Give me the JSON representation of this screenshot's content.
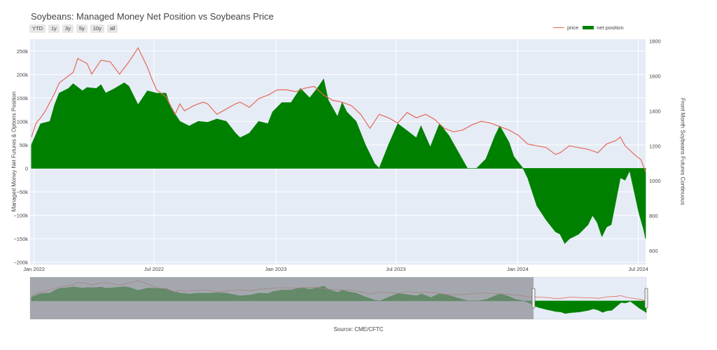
{
  "title": "Soybeans: Managed Money Net Position vs Soybeans Price",
  "range_buttons": [
    "YTD",
    "1y",
    "3y",
    "5y",
    "10y",
    "all"
  ],
  "legend": {
    "price": "price",
    "net": "net position"
  },
  "colors": {
    "price": "#e8685a",
    "net": "#008000",
    "plot_bg": "#e5ecf6",
    "mask": "#8a8d91"
  },
  "source": "Source: CME/CFTC",
  "chart_data": {
    "type": "area",
    "title": "Soybeans: Managed Money Net Position vs Soybeans Price",
    "xlabel": "",
    "x_ticks": [
      "Jan 2022",
      "Jul 2022",
      "Jan 2023",
      "Jul 2023",
      "Jan 2024",
      "Jul 2024"
    ],
    "x_range": [
      "2021-12-26",
      "2024-07-12"
    ],
    "y_left": {
      "label": "Managed Money Net Futures & Options Position",
      "range": [
        -205000,
        275000
      ],
      "ticks": [
        250000,
        200000,
        150000,
        100000,
        50000,
        0,
        -50000,
        -100000,
        -150000,
        -200000
      ],
      "tick_labels": [
        "250k",
        "200k",
        "150k",
        "100k",
        "50k",
        "0",
        "−50k",
        "−100k",
        "−150k",
        "−200k"
      ]
    },
    "y_right": {
      "label": "Front Month Soybeans Futures Continuous",
      "range": [
        520,
        1810
      ],
      "ticks": [
        1800,
        1600,
        1400,
        1200,
        1000,
        800,
        600
      ],
      "tick_labels": [
        "1800",
        "1600",
        "1400",
        "1200",
        "1000",
        "800",
        "600"
      ]
    },
    "grid": true,
    "legend_position": "top-right",
    "series": [
      {
        "name": "net position",
        "axis": "left",
        "style": "filled-area",
        "points": [
          [
            "2021-12-28",
            50000
          ],
          [
            "2022-01-11",
            95000
          ],
          [
            "2022-01-25",
            100000
          ],
          [
            "2022-02-01",
            135000
          ],
          [
            "2022-02-08",
            160000
          ],
          [
            "2022-02-22",
            170000
          ],
          [
            "2022-03-01",
            180000
          ],
          [
            "2022-03-15",
            165000
          ],
          [
            "2022-03-22",
            172000
          ],
          [
            "2022-04-05",
            170000
          ],
          [
            "2022-04-12",
            178000
          ],
          [
            "2022-04-19",
            160000
          ],
          [
            "2022-05-03",
            170000
          ],
          [
            "2022-05-17",
            182000
          ],
          [
            "2022-05-24",
            175000
          ],
          [
            "2022-06-07",
            135000
          ],
          [
            "2022-06-21",
            165000
          ],
          [
            "2022-07-05",
            160000
          ],
          [
            "2022-07-19",
            160000
          ],
          [
            "2022-07-26",
            130000
          ],
          [
            "2022-08-09",
            100000
          ],
          [
            "2022-08-23",
            90000
          ],
          [
            "2022-09-06",
            100000
          ],
          [
            "2022-09-20",
            98000
          ],
          [
            "2022-10-04",
            105000
          ],
          [
            "2022-10-18",
            100000
          ],
          [
            "2022-11-01",
            75000
          ],
          [
            "2022-11-08",
            65000
          ],
          [
            "2022-11-22",
            75000
          ],
          [
            "2022-12-06",
            100000
          ],
          [
            "2022-12-20",
            95000
          ],
          [
            "2022-12-27",
            120000
          ],
          [
            "2023-01-10",
            140000
          ],
          [
            "2023-01-24",
            140000
          ],
          [
            "2023-02-07",
            170000
          ],
          [
            "2023-02-21",
            150000
          ],
          [
            "2023-03-07",
            175000
          ],
          [
            "2023-03-14",
            190000
          ],
          [
            "2023-03-21",
            145000
          ],
          [
            "2023-04-04",
            110000
          ],
          [
            "2023-04-11",
            140000
          ],
          [
            "2023-04-18",
            120000
          ],
          [
            "2023-05-02",
            100000
          ],
          [
            "2023-05-16",
            50000
          ],
          [
            "2023-05-30",
            10000
          ],
          [
            "2023-06-06",
            0
          ],
          [
            "2023-06-20",
            50000
          ],
          [
            "2023-07-04",
            95000
          ],
          [
            "2023-07-18",
            80000
          ],
          [
            "2023-08-01",
            65000
          ],
          [
            "2023-08-08",
            90000
          ],
          [
            "2023-08-22",
            45000
          ],
          [
            "2023-09-05",
            95000
          ],
          [
            "2023-09-19",
            70000
          ],
          [
            "2023-10-03",
            35000
          ],
          [
            "2023-10-17",
            0
          ],
          [
            "2023-10-31",
            0
          ],
          [
            "2023-11-14",
            20000
          ],
          [
            "2023-11-28",
            70000
          ],
          [
            "2023-12-05",
            90000
          ],
          [
            "2023-12-19",
            55000
          ],
          [
            "2023-12-26",
            25000
          ],
          [
            "2024-01-09",
            0
          ],
          [
            "2024-01-16",
            -20000
          ],
          [
            "2024-01-30",
            -80000
          ],
          [
            "2024-02-13",
            -110000
          ],
          [
            "2024-02-27",
            -135000
          ],
          [
            "2024-03-05",
            -140000
          ],
          [
            "2024-03-12",
            -160000
          ],
          [
            "2024-03-19",
            -150000
          ],
          [
            "2024-04-02",
            -140000
          ],
          [
            "2024-04-16",
            -120000
          ],
          [
            "2024-04-23",
            -100000
          ],
          [
            "2024-04-30",
            -115000
          ],
          [
            "2024-05-07",
            -145000
          ],
          [
            "2024-05-14",
            -125000
          ],
          [
            "2024-05-21",
            -120000
          ],
          [
            "2024-06-04",
            -20000
          ],
          [
            "2024-06-11",
            -25000
          ],
          [
            "2024-06-18",
            -5000
          ],
          [
            "2024-06-25",
            -50000
          ],
          [
            "2024-07-02",
            -95000
          ],
          [
            "2024-07-09",
            -130000
          ],
          [
            "2024-07-12",
            -150000
          ]
        ]
      },
      {
        "name": "price",
        "axis": "right",
        "style": "line",
        "points": [
          [
            "2021-12-28",
            1250
          ],
          [
            "2022-01-04",
            1330
          ],
          [
            "2022-01-11",
            1360
          ],
          [
            "2022-01-18",
            1400
          ],
          [
            "2022-02-01",
            1500
          ],
          [
            "2022-02-08",
            1560
          ],
          [
            "2022-02-15",
            1580
          ],
          [
            "2022-03-01",
            1620
          ],
          [
            "2022-03-08",
            1700
          ],
          [
            "2022-03-22",
            1670
          ],
          [
            "2022-03-29",
            1610
          ],
          [
            "2022-04-12",
            1690
          ],
          [
            "2022-04-26",
            1680
          ],
          [
            "2022-05-10",
            1610
          ],
          [
            "2022-05-24",
            1680
          ],
          [
            "2022-06-07",
            1760
          ],
          [
            "2022-06-21",
            1650
          ],
          [
            "2022-06-28",
            1580
          ],
          [
            "2022-07-05",
            1520
          ],
          [
            "2022-07-19",
            1480
          ],
          [
            "2022-08-02",
            1380
          ],
          [
            "2022-08-09",
            1440
          ],
          [
            "2022-08-16",
            1400
          ],
          [
            "2022-08-30",
            1430
          ],
          [
            "2022-09-13",
            1450
          ],
          [
            "2022-09-20",
            1440
          ],
          [
            "2022-10-04",
            1380
          ],
          [
            "2022-10-18",
            1410
          ],
          [
            "2022-11-01",
            1440
          ],
          [
            "2022-11-08",
            1450
          ],
          [
            "2022-11-22",
            1420
          ],
          [
            "2022-12-06",
            1470
          ],
          [
            "2022-12-20",
            1490
          ],
          [
            "2023-01-03",
            1520
          ],
          [
            "2023-01-17",
            1520
          ],
          [
            "2023-01-31",
            1510
          ],
          [
            "2023-02-14",
            1530
          ],
          [
            "2023-02-28",
            1540
          ],
          [
            "2023-03-14",
            1490
          ],
          [
            "2023-03-28",
            1460
          ],
          [
            "2023-04-11",
            1450
          ],
          [
            "2023-04-25",
            1430
          ],
          [
            "2023-05-09",
            1380
          ],
          [
            "2023-05-23",
            1300
          ],
          [
            "2023-06-06",
            1380
          ],
          [
            "2023-06-20",
            1360
          ],
          [
            "2023-07-04",
            1330
          ],
          [
            "2023-07-18",
            1390
          ],
          [
            "2023-08-01",
            1360
          ],
          [
            "2023-08-15",
            1380
          ],
          [
            "2023-08-29",
            1350
          ],
          [
            "2023-09-12",
            1300
          ],
          [
            "2023-09-26",
            1280
          ],
          [
            "2023-10-10",
            1290
          ],
          [
            "2023-10-24",
            1320
          ],
          [
            "2023-11-07",
            1340
          ],
          [
            "2023-11-21",
            1330
          ],
          [
            "2023-12-05",
            1310
          ],
          [
            "2023-12-19",
            1290
          ],
          [
            "2024-01-02",
            1260
          ],
          [
            "2024-01-16",
            1210
          ],
          [
            "2024-01-30",
            1200
          ],
          [
            "2024-02-13",
            1190
          ],
          [
            "2024-02-27",
            1150
          ],
          [
            "2024-03-05",
            1160
          ],
          [
            "2024-03-19",
            1200
          ],
          [
            "2024-04-02",
            1190
          ],
          [
            "2024-04-16",
            1180
          ],
          [
            "2024-05-01",
            1160
          ],
          [
            "2024-05-14",
            1210
          ],
          [
            "2024-05-28",
            1230
          ],
          [
            "2024-06-04",
            1250
          ],
          [
            "2024-06-11",
            1200
          ],
          [
            "2024-06-25",
            1150
          ],
          [
            "2024-07-05",
            1120
          ],
          [
            "2024-07-12",
            1050
          ]
        ]
      }
    ],
    "range_slider": {
      "selected_from": "2024-01-24",
      "selected_to": "2024-07-12"
    }
  }
}
